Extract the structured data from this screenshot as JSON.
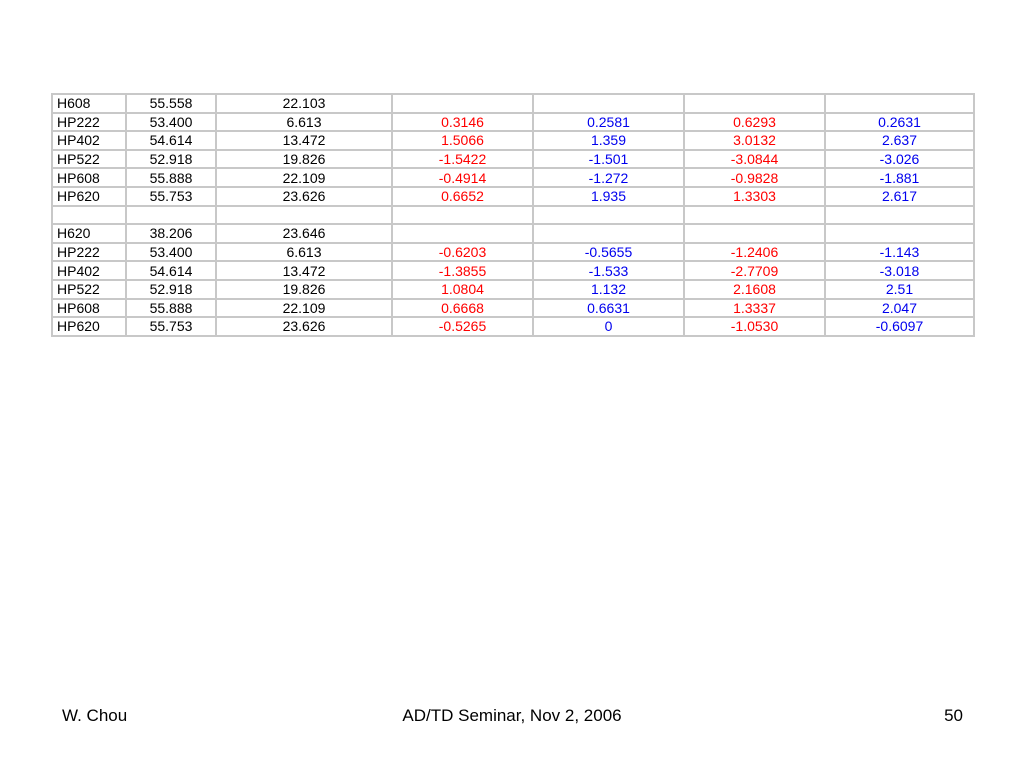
{
  "table": {
    "rows": [
      [
        "H608",
        "55.558",
        "22.103",
        "",
        "",
        "",
        ""
      ],
      [
        "HP222",
        "53.400",
        "6.613",
        "0.3146",
        "0.2581",
        "0.6293",
        "0.2631"
      ],
      [
        "HP402",
        "54.614",
        "13.472",
        "1.5066",
        "1.359",
        "3.0132",
        "2.637"
      ],
      [
        "HP522",
        "52.918",
        "19.826",
        "-1.5422",
        "-1.501",
        "-3.0844",
        "-3.026"
      ],
      [
        "HP608",
        "55.888",
        "22.109",
        "-0.4914",
        "-1.272",
        "-0.9828",
        "-1.881"
      ],
      [
        "HP620",
        "55.753",
        "23.626",
        "0.6652",
        "1.935",
        "1.3303",
        "2.617"
      ],
      [
        "",
        "",
        "",
        "",
        "",
        "",
        ""
      ],
      [
        "H620",
        "38.206",
        "23.646",
        "",
        "",
        "",
        ""
      ],
      [
        "HP222",
        "53.400",
        "6.613",
        "-0.6203",
        "-0.5655",
        "-1.2406",
        "-1.143"
      ],
      [
        "HP402",
        "54.614",
        "13.472",
        "-1.3855",
        "-1.533",
        "-2.7709",
        "-3.018"
      ],
      [
        "HP522",
        "52.918",
        "19.826",
        "1.0804",
        "1.132",
        "2.1608",
        "2.51"
      ],
      [
        "HP608",
        "55.888",
        "22.109",
        "0.6668",
        "0.6631",
        "1.3337",
        "2.047"
      ],
      [
        "HP620",
        "55.753",
        "23.626",
        "-0.5265",
        "0",
        "-1.0530",
        "-0.6097"
      ]
    ],
    "column_colors": [
      "#000000",
      "#000000",
      "#000000",
      "#ff0000",
      "#0000ee",
      "#ff0000",
      "#0000ee"
    ]
  },
  "footer": {
    "author": "W. Chou",
    "event": "AD/TD Seminar, Nov 2, 2006",
    "page_number": "50"
  }
}
